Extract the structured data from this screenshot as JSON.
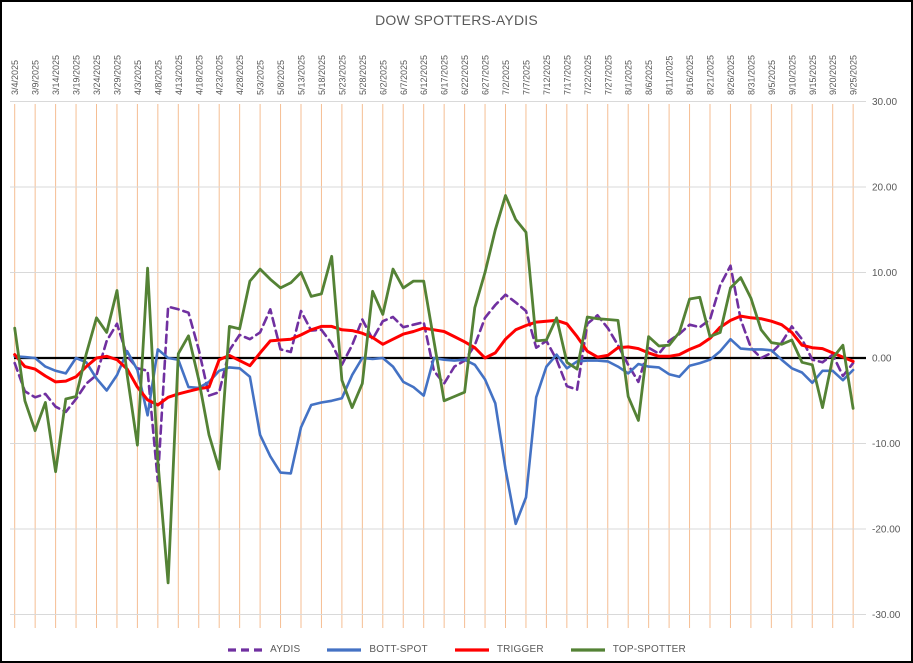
{
  "title": "DOW SPOTTERS-AYDIS",
  "colors": {
    "title_text": "#595959",
    "axis_text": "#595959",
    "vertical_gridline": "#F5BE93",
    "horizontal_gridline": "#D9D9D9",
    "zero_axis": "#000000",
    "border": "#000000"
  },
  "chart_data": {
    "type": "line",
    "title": "DOW SPOTTERS-AYDIS",
    "xlabel": "",
    "ylabel": "",
    "ylim": [
      -30,
      30
    ],
    "y_tick_step": 10,
    "y_tick_labels": [
      "30.00",
      "20.00",
      "10.00",
      "0.00",
      "-10.00",
      "-20.00",
      "-30.00"
    ],
    "grid": {
      "vertical": true,
      "horizontal": true
    },
    "legend_position": "bottom",
    "points_per_tick_interval": 2,
    "x_tick_labels": [
      "3/4/2025",
      "3/9/2025",
      "3/14/2025",
      "3/19/2025",
      "3/24/2025",
      "3/29/2025",
      "4/3/2025",
      "4/8/2025",
      "4/13/2025",
      "4/18/2025",
      "4/23/2025",
      "4/28/2025",
      "5/3/2025",
      "5/8/2025",
      "5/13/2025",
      "5/18/2025",
      "5/23/2025",
      "5/28/2025",
      "6/2/2025",
      "6/7/2025",
      "6/12/2025",
      "6/17/2025",
      "6/22/2025",
      "6/27/2025",
      "7/2/2025",
      "7/7/2025",
      "7/12/2025",
      "7/17/2025",
      "7/22/2025",
      "7/27/2025",
      "8/1/2025",
      "8/6/2025",
      "8/11/2025",
      "8/16/2025",
      "8/21/2025",
      "8/26/2025",
      "8/31/2025",
      "9/5/2025",
      "9/10/2025",
      "9/15/2025",
      "9/20/2025",
      "9/25/2025"
    ],
    "series": [
      {
        "name": "AYDIS",
        "color": "#7030A0",
        "dash": "8 5",
        "width": 2.6,
        "values": [
          -0.6,
          -3.9,
          -4.6,
          -4.2,
          -5.7,
          -6.3,
          -4.8,
          -3.0,
          -2.0,
          2.0,
          4.0,
          0.2,
          -1.2,
          -1.5,
          -14.4,
          6.0,
          5.7,
          5.3,
          1.0,
          -4.4,
          -4.0,
          0.9,
          2.7,
          2.2,
          3.0,
          5.7,
          1.0,
          0.7,
          5.5,
          3.2,
          3.3,
          1.7,
          -0.8,
          1.5,
          4.5,
          2.2,
          4.3,
          4.8,
          3.6,
          3.9,
          4.2,
          -1.5,
          -3.0,
          -1.0,
          -0.3,
          1.5,
          4.7,
          6.2,
          7.4,
          6.5,
          5.5,
          1.2,
          2.0,
          -0.2,
          -3.3,
          -3.7,
          4.0,
          5.0,
          3.5,
          1.5,
          -0.8,
          -2.8,
          1.2,
          0.5,
          2.0,
          2.8,
          3.9,
          3.6,
          4.5,
          8.5,
          10.8,
          4.5,
          1.2,
          0.0,
          0.6,
          1.8,
          3.7,
          2.2,
          -0.2,
          -0.5,
          0.4,
          -2.1,
          -0.6
        ]
      },
      {
        "name": "BOTT-SPOT",
        "color": "#4472C4",
        "dash": null,
        "width": 2.6,
        "values": [
          0.2,
          0.1,
          0.0,
          -1.0,
          -1.5,
          -1.8,
          0.0,
          -0.5,
          -2.4,
          -3.8,
          -2.0,
          0.8,
          -1.4,
          -6.7,
          1.0,
          0.0,
          -0.2,
          -3.4,
          -3.5,
          -2.8,
          -1.5,
          -1.1,
          -1.2,
          -2.2,
          -9.0,
          -11.5,
          -13.4,
          -13.5,
          -8.1,
          -5.5,
          -5.2,
          -5.0,
          -4.7,
          -2.0,
          0.0,
          -0.1,
          0.0,
          -1.0,
          -2.8,
          -3.4,
          -4.4,
          0.0,
          -0.2,
          -0.3,
          -0.2,
          -0.8,
          -2.5,
          -5.3,
          -13.0,
          -19.4,
          -16.3,
          -4.6,
          -1.0,
          0.4,
          -1.2,
          -0.4,
          -0.3,
          -0.3,
          -0.4,
          -1.0,
          -1.8,
          -0.7,
          -1.0,
          -1.1,
          -1.9,
          -2.2,
          -0.9,
          -0.6,
          -0.2,
          0.8,
          2.2,
          1.1,
          1.0,
          1.0,
          0.9,
          -0.2,
          -1.2,
          -1.7,
          -2.9,
          -1.5,
          -1.5,
          -2.6,
          -1.4
        ]
      },
      {
        "name": "TRIGGER",
        "color": "#FF0000",
        "dash": null,
        "width": 3,
        "values": [
          0.4,
          -1.0,
          -1.3,
          -2.1,
          -2.8,
          -2.7,
          -2.2,
          -1.0,
          0.0,
          0.2,
          -0.2,
          -1.3,
          -3.4,
          -4.9,
          -5.5,
          -4.6,
          -4.2,
          -3.9,
          -3.6,
          -3.4,
          -0.2,
          0.3,
          -0.3,
          -0.9,
          0.6,
          2.0,
          2.1,
          2.2,
          2.7,
          3.3,
          3.7,
          3.7,
          3.3,
          3.2,
          2.9,
          2.4,
          1.6,
          2.2,
          2.8,
          3.1,
          3.5,
          3.3,
          3.1,
          2.5,
          1.9,
          1.2,
          0.0,
          0.6,
          2.2,
          3.3,
          3.8,
          4.2,
          4.3,
          4.4,
          4.0,
          2.5,
          0.8,
          0.1,
          0.3,
          1.2,
          1.3,
          1.1,
          0.6,
          0.2,
          0.2,
          0.4,
          1.0,
          1.5,
          2.3,
          3.6,
          4.4,
          4.9,
          4.7,
          4.6,
          4.3,
          3.9,
          3.0,
          1.5,
          1.2,
          1.1,
          0.6,
          0.1,
          -0.4
        ]
      },
      {
        "name": "TOP-SPOTTER",
        "color": "#548235",
        "dash": null,
        "width": 2.8,
        "values": [
          3.5,
          -5.0,
          -8.5,
          -5.2,
          -13.3,
          -4.8,
          -4.5,
          0.5,
          4.7,
          3.0,
          7.9,
          -2.0,
          -10.2,
          10.5,
          -12.0,
          -26.3,
          0.5,
          2.6,
          -2.5,
          -9.0,
          -13.0,
          3.7,
          3.4,
          9.0,
          10.4,
          9.2,
          8.2,
          8.8,
          10.0,
          7.2,
          7.5,
          11.9,
          -2.6,
          -5.8,
          -3.0,
          7.8,
          5.1,
          10.4,
          8.2,
          9.0,
          9.0,
          2.0,
          -5.0,
          -4.5,
          -4.0,
          5.9,
          10.0,
          15.0,
          19.0,
          16.2,
          14.7,
          2.0,
          2.1,
          4.7,
          -0.5,
          -1.3,
          4.8,
          4.6,
          4.5,
          4.4,
          -4.5,
          -7.3,
          2.5,
          1.4,
          1.5,
          3.0,
          6.9,
          7.1,
          2.5,
          3.0,
          8.2,
          9.4,
          7.0,
          3.3,
          1.8,
          1.6,
          2.1,
          -0.5,
          -0.8,
          -5.8,
          0.0,
          1.5,
          -5.9
        ]
      }
    ]
  }
}
